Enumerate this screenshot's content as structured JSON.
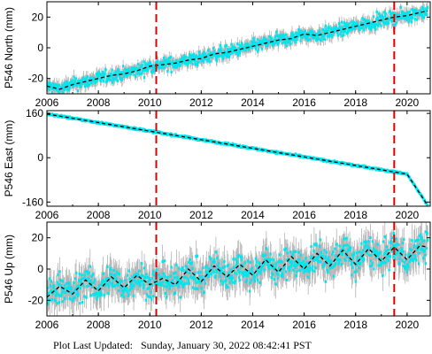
{
  "footer": {
    "label": "Plot Last Updated:",
    "timestamp": "Sunday, January 30, 2022 08:42:41 PST"
  },
  "colors": {
    "observation": "#00e5ee",
    "error_bar": "#b3b3b3",
    "model": "#000000",
    "event_line": "#e00000",
    "frame": "#000000"
  },
  "chart_data": [
    {
      "type": "line",
      "ylabel": "P546 North (mm)",
      "xlim": [
        2006.0,
        2020.9
      ],
      "ylim": [
        -30,
        30
      ],
      "x_ticks": [
        "2006",
        "2008",
        "2010",
        "2012",
        "2014",
        "2016",
        "2018",
        "2020"
      ],
      "y_ticks": [
        "-20",
        "0",
        "20"
      ],
      "event_lines_x": [
        2010.25,
        2019.5
      ],
      "series": [
        {
          "x": [
            2006.0,
            2006.5,
            2007.0,
            2007.5,
            2008.0,
            2008.5,
            2009.0,
            2009.5,
            2010.0,
            2010.5,
            2011.0,
            2011.5,
            2012.0,
            2012.5,
            2013.0,
            2013.5,
            2014.0,
            2014.5,
            2015.0,
            2015.5,
            2016.0,
            2016.5,
            2017.0,
            2017.5,
            2018.0,
            2018.5,
            2019.0,
            2019.5,
            2020.0,
            2020.5,
            2020.8
          ],
          "y": [
            -25,
            -27,
            -24,
            -22,
            -20,
            -18,
            -17,
            -15,
            -12,
            -11,
            -10,
            -8,
            -7,
            -4,
            -3,
            -1,
            1,
            3,
            5,
            6,
            9,
            8,
            10,
            12,
            14,
            16,
            18,
            20,
            21,
            23,
            24
          ],
          "scatter": 3.0
        }
      ]
    },
    {
      "type": "line",
      "ylabel": "P546 East (mm)",
      "xlim": [
        2006.0,
        2020.9
      ],
      "ylim": [
        -175,
        170
      ],
      "x_ticks": [
        "2006",
        "2008",
        "2010",
        "2012",
        "2014",
        "2016",
        "2018",
        "2020"
      ],
      "y_ticks": [
        "-160",
        "0",
        "160"
      ],
      "event_lines_x": [
        2010.25,
        2019.5
      ],
      "series": [
        {
          "x": [
            2006.0,
            2008.0,
            2010.0,
            2012.0,
            2014.0,
            2016.0,
            2018.0,
            2020.0,
            2020.8
          ],
          "y": [
            158,
            127,
            96,
            65,
            34,
            3,
            -28,
            -59,
            -172
          ],
          "scatter": 2.5
        }
      ]
    },
    {
      "type": "line",
      "ylabel": "P546 Up (mm)",
      "xlim": [
        2006.0,
        2020.9
      ],
      "ylim": [
        -30,
        30
      ],
      "x_ticks": [
        "2006",
        "2008",
        "2010",
        "2012",
        "2014",
        "2016",
        "2018",
        "2020"
      ],
      "y_ticks": [
        "-20",
        "0",
        "20"
      ],
      "event_lines_x": [
        2010.25,
        2019.5
      ],
      "series": [
        {
          "x": [
            2006.0,
            2006.5,
            2007.0,
            2007.5,
            2008.0,
            2008.5,
            2009.0,
            2009.5,
            2010.0,
            2010.5,
            2011.0,
            2011.5,
            2012.0,
            2012.5,
            2013.0,
            2013.5,
            2014.0,
            2014.5,
            2015.0,
            2015.5,
            2016.0,
            2016.5,
            2017.0,
            2017.5,
            2018.0,
            2018.5,
            2019.0,
            2019.5,
            2020.0,
            2020.5,
            2020.8
          ],
          "y": [
            -18,
            -11,
            -16,
            -7,
            -14,
            -5,
            -12,
            -4,
            -10,
            -6,
            -10,
            0,
            -8,
            2,
            -5,
            3,
            -4,
            6,
            -2,
            8,
            0,
            10,
            2,
            12,
            3,
            13,
            5,
            14,
            6,
            15,
            14
          ],
          "scatter": 7.0
        }
      ]
    }
  ]
}
